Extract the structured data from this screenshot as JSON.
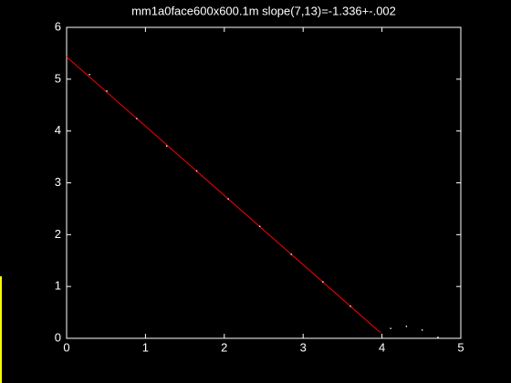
{
  "chart_data": {
    "type": "line",
    "title": "mm1a0face600x600.1m slope(7,13)=-1.336+-.002",
    "series": [
      {
        "color": "#ff0000",
        "style": "line",
        "x": [
          0,
          3.98
        ],
        "values": [
          5.43,
          0.11
        ]
      },
      {
        "color": "#ffffff",
        "style": "dots",
        "x": [
          0.29,
          0.51,
          0.89,
          1.27,
          1.65,
          2.05,
          2.45,
          2.85,
          3.25,
          3.6,
          4.11,
          4.31,
          4.51,
          4.71
        ],
        "values": [
          5.09,
          4.77,
          4.24,
          3.71,
          3.23,
          2.69,
          2.16,
          1.62,
          1.09,
          0.62,
          0.19,
          0.23,
          0.16,
          0.02
        ]
      }
    ],
    "xlim": [
      0,
      5
    ],
    "xticks": [
      0,
      1,
      2,
      3,
      4,
      5
    ],
    "ylim": [
      0,
      6
    ],
    "yticks": [
      0,
      1,
      2,
      3,
      4,
      5,
      6
    ],
    "background": "#000000",
    "axis_color": "#ffffff"
  }
}
